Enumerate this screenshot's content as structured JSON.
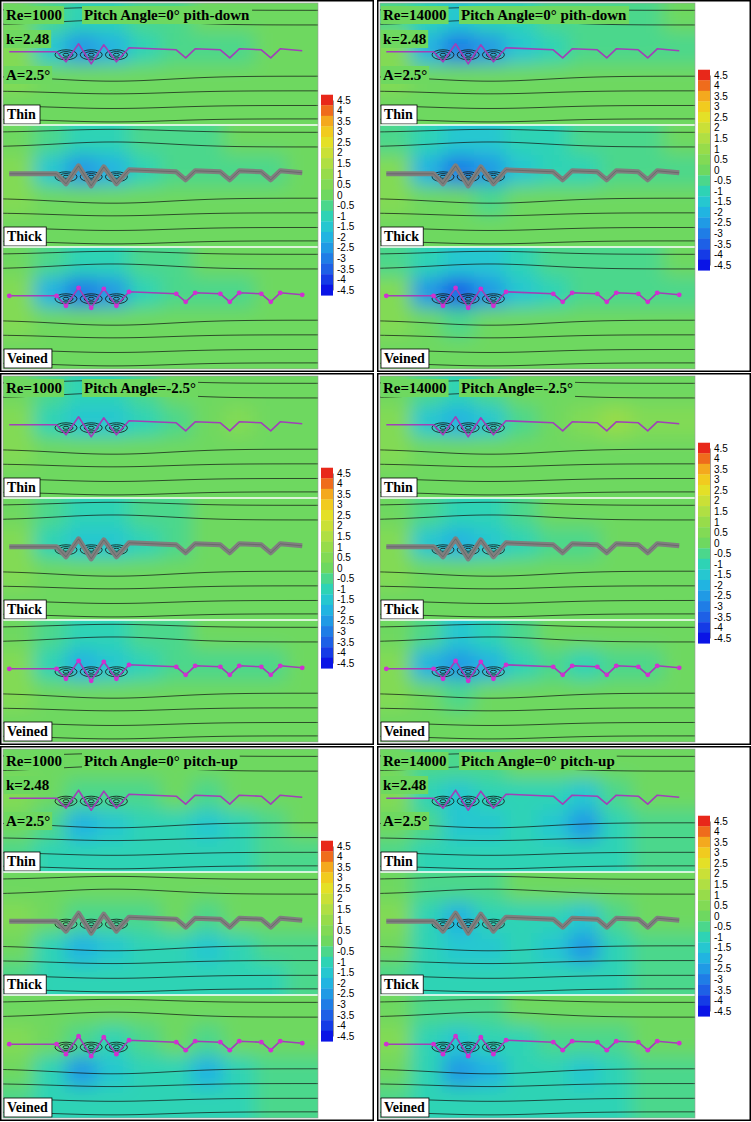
{
  "chart_data": [
    {
      "type": "contour",
      "title": "Re=1000",
      "subtitle": "Pitch Angle=0° pith-down",
      "annotations": [
        "k=2.48",
        "A=2.5°"
      ],
      "colorbar_range": [
        -4.5,
        4.5
      ],
      "colorbar_ticks": [
        4.5,
        4,
        3.5,
        3,
        2.5,
        2,
        1.5,
        1,
        0.5,
        0,
        -0.5,
        -1,
        -1.5,
        -2,
        -2.5,
        -3,
        -3.5,
        -4,
        -4.5
      ],
      "panels": [
        {
          "label": "Thin",
          "cells": [
            [
              0,
              -0.5,
              -1,
              -1,
              -0.5,
              -0.5,
              0,
              0,
              0,
              0
            ],
            [
              0.5,
              -1.5,
              -2.5,
              -2,
              -1,
              -0.5,
              -0.5,
              -0.5,
              0,
              0
            ],
            [
              0.5,
              0,
              0,
              0,
              0,
              0,
              0,
              0,
              0,
              0
            ],
            [
              0,
              0,
              0,
              0,
              0,
              0,
              0,
              0,
              0,
              0
            ]
          ]
        },
        {
          "label": "Thick",
          "cells": [
            [
              0,
              -0.5,
              -1,
              -1,
              -0.5,
              -0.5,
              -0.5,
              0,
              0,
              0
            ],
            [
              0.5,
              -1.5,
              -2.5,
              -2,
              -1,
              -0.5,
              -0.5,
              -0.5,
              -0.5,
              0
            ],
            [
              0.5,
              0,
              0,
              0,
              0,
              0,
              0,
              0,
              0,
              0
            ],
            [
              0,
              0,
              0,
              0,
              0,
              0,
              0,
              0,
              0,
              0
            ]
          ]
        },
        {
          "label": "Veined",
          "cells": [
            [
              0,
              -0.5,
              -1,
              -1,
              -0.5,
              -0.5,
              0,
              0,
              0,
              0
            ],
            [
              0.5,
              -2,
              -3,
              -2.5,
              -1,
              -0.5,
              -0.5,
              -0.5,
              0,
              0
            ],
            [
              0.5,
              0,
              0,
              0,
              0,
              0,
              0,
              0,
              0,
              0
            ],
            [
              0,
              0,
              0,
              0,
              0,
              0,
              0,
              0,
              0,
              0
            ]
          ]
        }
      ]
    },
    {
      "type": "contour",
      "title": "Re=14000",
      "subtitle": "Pitch Angle=0° pith-down",
      "annotations": [
        "k=2.48",
        "A=2.5°"
      ],
      "colorbar_range": [
        -4.5,
        4.5
      ],
      "colorbar_ticks": [
        4.5,
        4,
        3.5,
        3,
        2.5,
        2,
        1.5,
        1,
        0.5,
        0,
        -0.5,
        -1,
        -1.5,
        -2,
        -2.5,
        -3,
        -3.5,
        -4,
        -4.5
      ],
      "panels": [
        {
          "label": "Thin",
          "cells": [
            [
              -0.5,
              -1,
              -1.5,
              -1,
              -1,
              -0.5,
              -0.5,
              -0.5,
              -0.5,
              0
            ],
            [
              0.5,
              -2,
              -3,
              -2.5,
              -1.5,
              -1,
              -0.5,
              -0.5,
              -0.5,
              -0.5
            ],
            [
              0.5,
              0,
              0,
              0,
              0,
              0,
              0,
              0,
              0,
              0
            ],
            [
              0,
              0,
              0,
              0,
              0,
              0,
              0,
              0,
              0,
              0
            ]
          ]
        },
        {
          "label": "Thick",
          "cells": [
            [
              -0.5,
              -1,
              -1.5,
              -1.5,
              -1,
              -1,
              -0.5,
              -0.5,
              -0.5,
              0
            ],
            [
              0.5,
              -2,
              -3,
              -2.5,
              -1.5,
              -1,
              -1,
              -0.5,
              -0.5,
              -0.5
            ],
            [
              0.5,
              0,
              0,
              -0.5,
              0,
              0,
              0,
              0,
              0,
              0
            ],
            [
              0,
              0,
              0,
              0,
              0,
              0,
              0,
              0,
              0,
              0
            ]
          ]
        },
        {
          "label": "Veined",
          "cells": [
            [
              -0.5,
              -1,
              -1.5,
              -1.5,
              -1,
              -0.5,
              -0.5,
              -0.5,
              -0.5,
              0
            ],
            [
              0.5,
              -2.5,
              -3.5,
              -2.5,
              -1.5,
              -1,
              -0.5,
              -0.5,
              -0.5,
              -0.5
            ],
            [
              0.5,
              0,
              -0.5,
              0,
              0,
              0,
              0,
              0,
              0,
              0
            ],
            [
              0,
              0,
              0,
              0,
              0,
              0,
              0,
              0,
              0,
              0
            ]
          ]
        }
      ]
    },
    {
      "type": "contour",
      "title": "Re=1000",
      "subtitle": "Pitch Angle=-2.5°",
      "colorbar_range": [
        -4.5,
        4.5
      ],
      "colorbar_ticks": [
        4.5,
        4,
        3.5,
        3,
        2.5,
        2,
        1.5,
        1,
        0.5,
        0,
        -0.5,
        -1,
        -1.5,
        -2,
        -2.5,
        -3,
        -3.5,
        -4,
        -4.5
      ],
      "panels": [
        {
          "label": "Thin",
          "cells": [
            [
              0,
              -0.5,
              -1,
              -1,
              -0.5,
              0,
              0,
              0,
              0,
              0
            ],
            [
              0.5,
              -1,
              -1.5,
              -1.5,
              -1,
              -0.5,
              0,
              0.5,
              0,
              0
            ],
            [
              0.5,
              0,
              0,
              0,
              0,
              0,
              0,
              0,
              0,
              0
            ],
            [
              0,
              0,
              0,
              0,
              0,
              0,
              0,
              0,
              0,
              0
            ]
          ]
        },
        {
          "label": "Thick",
          "cells": [
            [
              0,
              -0.5,
              -1,
              -1,
              -0.5,
              -0.5,
              0,
              0,
              0,
              0
            ],
            [
              0.5,
              -1,
              -1.5,
              -1.5,
              -1,
              -0.5,
              0,
              0,
              0,
              0
            ],
            [
              0.5,
              0,
              0,
              0,
              0,
              0,
              0,
              0,
              0,
              0
            ],
            [
              0,
              0,
              0,
              0,
              0,
              0,
              0,
              0,
              0,
              0
            ]
          ]
        },
        {
          "label": "Veined",
          "cells": [
            [
              0,
              -0.5,
              -1,
              -1,
              -0.5,
              -0.5,
              0,
              0,
              0,
              0
            ],
            [
              0.5,
              -1,
              -2,
              -1.5,
              -1,
              -0.5,
              -0.5,
              -0.5,
              -0.5,
              0
            ],
            [
              0.5,
              0,
              0,
              0,
              0,
              0,
              0,
              0,
              0,
              0
            ],
            [
              0,
              0,
              0,
              0,
              0,
              0,
              0,
              0,
              0,
              0
            ]
          ]
        }
      ]
    },
    {
      "type": "contour",
      "title": "Re=14000",
      "subtitle": "Pitch Angle=-2.5°",
      "colorbar_range": [
        -4.5,
        4.5
      ],
      "colorbar_ticks": [
        4.5,
        4,
        3.5,
        3,
        2.5,
        2,
        1.5,
        1,
        0.5,
        0,
        -0.5,
        -1,
        -1.5,
        -2,
        -2.5,
        -3,
        -3.5,
        -4,
        -4.5
      ],
      "panels": [
        {
          "label": "Thin",
          "cells": [
            [
              0,
              -0.5,
              -1,
              -0.5,
              0,
              0,
              0,
              0,
              0,
              0
            ],
            [
              0.5,
              -1.5,
              -2,
              -1.5,
              -0.5,
              0,
              0.5,
              1,
              0.5,
              0.5
            ],
            [
              0.5,
              0,
              0,
              0,
              0,
              0,
              0,
              0,
              0,
              0
            ],
            [
              0,
              0,
              0,
              0,
              0,
              0,
              0,
              0,
              0,
              0
            ]
          ]
        },
        {
          "label": "Thick",
          "cells": [
            [
              0,
              -0.5,
              -1,
              -1,
              -0.5,
              0,
              0,
              0,
              0,
              0
            ],
            [
              0.5,
              -1.5,
              -2,
              -1.5,
              -1,
              -0.5,
              -0.5,
              0,
              0,
              0
            ],
            [
              0.5,
              0,
              0,
              0,
              0,
              0,
              0,
              0,
              0,
              0
            ],
            [
              0,
              0,
              0,
              0,
              0,
              0,
              0,
              0,
              0,
              0
            ]
          ]
        },
        {
          "label": "Veined",
          "cells": [
            [
              0,
              -0.5,
              -1.5,
              -1,
              -0.5,
              0,
              0,
              0,
              0,
              0
            ],
            [
              0.5,
              -2,
              -2.5,
              -2,
              -1,
              -0.5,
              -1,
              -0.5,
              -0.5,
              0
            ],
            [
              0.5,
              0,
              -0.5,
              0,
              0,
              0,
              0,
              0,
              0,
              0
            ],
            [
              0,
              0,
              0,
              0,
              0,
              0,
              0,
              0,
              0,
              0
            ]
          ]
        }
      ]
    },
    {
      "type": "contour",
      "title": "Re=1000",
      "subtitle": "Pitch Angle=0° pitch-up",
      "annotations": [
        "k=2.48",
        "A=2.5°"
      ],
      "colorbar_range": [
        -4.5,
        4.5
      ],
      "colorbar_ticks": [
        4.5,
        4,
        3.5,
        3,
        2.5,
        2,
        1.5,
        1,
        0.5,
        0,
        -0.5,
        -1,
        -1.5,
        -2,
        -2.5,
        -3,
        -3.5,
        -4,
        -4.5
      ],
      "panels": [
        {
          "label": "Thin",
          "cells": [
            [
              0,
              0,
              0,
              0,
              0,
              0,
              0,
              0,
              0,
              0
            ],
            [
              0.5,
              0,
              -0.5,
              -0.5,
              -0.5,
              0,
              -0.5,
              0,
              0,
              0
            ],
            [
              0,
              -0.5,
              -2,
              -1.5,
              -1,
              -1,
              -1.5,
              -1,
              -0.5,
              0
            ],
            [
              -0.5,
              -1,
              -1,
              -1,
              -1,
              -1,
              -1,
              -1,
              -0.5,
              -0.5
            ]
          ]
        },
        {
          "label": "Thick",
          "cells": [
            [
              0,
              0,
              0,
              0,
              0,
              0,
              0,
              0,
              0,
              0
            ],
            [
              0.5,
              0,
              -0.5,
              -0.5,
              -0.5,
              0,
              -0.5,
              0,
              0,
              0
            ],
            [
              0,
              -1,
              -2,
              -1.5,
              -1,
              -1,
              -1.5,
              -1,
              -0.5,
              -0.5
            ],
            [
              -0.5,
              -1,
              -1,
              -1,
              -1,
              -1,
              -1,
              -1,
              -1,
              -0.5
            ]
          ]
        },
        {
          "label": "Veined",
          "cells": [
            [
              0,
              0,
              0,
              0,
              0,
              0,
              0,
              0,
              0,
              0
            ],
            [
              0.5,
              0,
              -0.5,
              -1,
              -0.5,
              0,
              -0.5,
              0,
              0,
              0
            ],
            [
              0,
              -1,
              -2.5,
              -1.5,
              -1,
              -1,
              -2,
              -1,
              -0.5,
              -0.5
            ],
            [
              -0.5,
              -1,
              -1,
              -1,
              -1,
              -1,
              -1,
              -1,
              -0.5,
              -0.5
            ]
          ]
        }
      ]
    },
    {
      "type": "contour",
      "title": "Re=14000",
      "subtitle": "Pitch Angle=0° pitch-up",
      "annotations": [
        "k=2.48",
        "A=2.5°"
      ],
      "colorbar_range": [
        -4.5,
        4.5
      ],
      "colorbar_ticks": [
        4.5,
        4,
        3.5,
        3,
        2.5,
        2,
        1.5,
        1,
        0.5,
        0,
        -0.5,
        -1,
        -1.5,
        -2,
        -2.5,
        -3,
        -3.5,
        -4,
        -4.5
      ],
      "panels": [
        {
          "label": "Thin",
          "cells": [
            [
              0,
              -0.5,
              -0.5,
              -0.5,
              0,
              0,
              0,
              0,
              0,
              0
            ],
            [
              0.5,
              -1,
              -1.5,
              -1,
              -1,
              -1,
              -1.5,
              -0.5,
              0,
              0
            ],
            [
              0,
              -0.5,
              -1.5,
              -1.5,
              -1,
              -1.5,
              -2.5,
              -1,
              -0.5,
              -0.5
            ],
            [
              -0.5,
              -1,
              -1,
              -1,
              -1,
              -1,
              -1,
              -1,
              -0.5,
              -0.5
            ]
          ]
        },
        {
          "label": "Thick",
          "cells": [
            [
              0,
              -0.5,
              -0.5,
              -0.5,
              0,
              0,
              0,
              0,
              0,
              0
            ],
            [
              0.5,
              -1,
              -2,
              -1,
              -1,
              -1,
              -1.5,
              -0.5,
              0,
              0
            ],
            [
              0,
              -1,
              -1.5,
              -1.5,
              -1,
              -1.5,
              -2.5,
              -1,
              -0.5,
              -0.5
            ],
            [
              -0.5,
              -1,
              -1,
              -1,
              -1,
              -1,
              -1,
              -1,
              -0.5,
              -0.5
            ]
          ]
        },
        {
          "label": "Veined",
          "cells": [
            [
              0,
              -0.5,
              -0.5,
              -0.5,
              0,
              0,
              0,
              0,
              0,
              0
            ],
            [
              0.5,
              -1,
              -1.5,
              -1,
              -1,
              -0.5,
              -0.5,
              -0.5,
              0,
              0
            ],
            [
              0,
              -1,
              -2.5,
              -2,
              -1,
              -1,
              -1.5,
              -1,
              -0.5,
              -0.5
            ],
            [
              -0.5,
              -1,
              -1,
              -1,
              -1,
              -1,
              -1,
              -1,
              -0.5,
              -0.5
            ]
          ]
        }
      ]
    }
  ]
}
